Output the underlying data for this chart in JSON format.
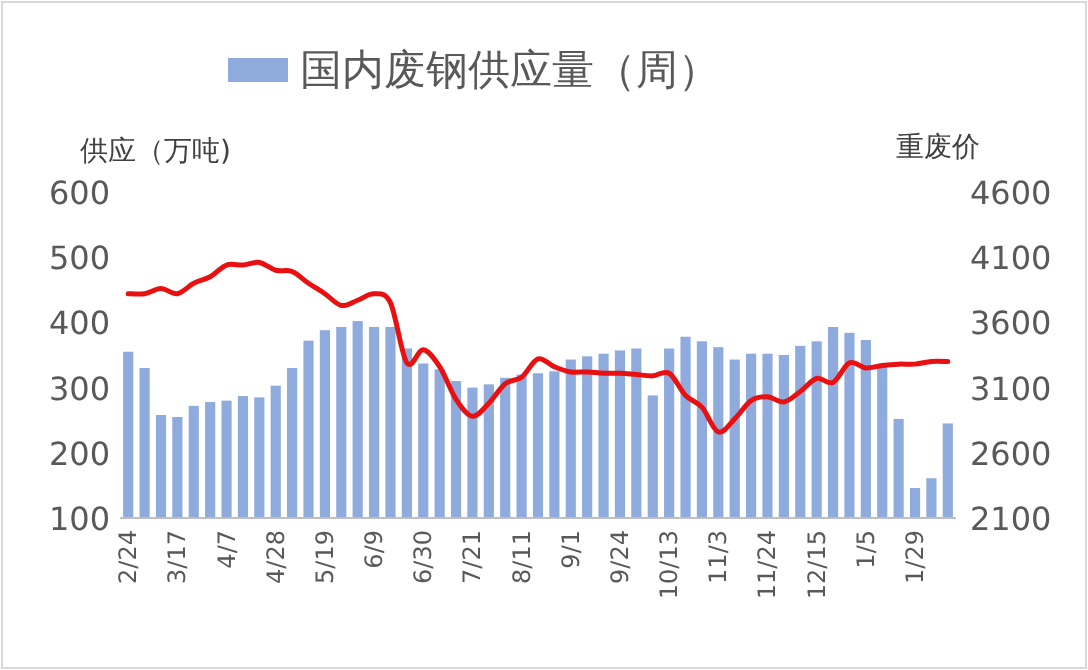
{
  "chart_data": {
    "type": "bar",
    "ylabel": "供应（万吨)",
    "y2label": "重废价",
    "categories": [
      "2/24",
      null,
      null,
      "3/17",
      null,
      null,
      "4/7",
      null,
      null,
      "4/28",
      null,
      null,
      "5/19",
      null,
      null,
      "6/9",
      null,
      null,
      "6/30",
      null,
      null,
      "7/21",
      null,
      null,
      "8/11",
      null,
      null,
      "9/1",
      null,
      null,
      "9/24",
      null,
      null,
      "10/13",
      null,
      null,
      "11/3",
      null,
      null,
      "11/24",
      null,
      null,
      "12/15",
      null,
      null,
      "1/5",
      null,
      null,
      "1/29",
      null,
      null
    ],
    "series": [
      {
        "name": "国内废钢供应量（周）",
        "color": "#8faadc",
        "values": [
          355,
          330,
          258,
          255,
          272,
          278,
          280,
          287,
          285,
          303,
          330,
          372,
          388,
          393,
          402,
          393,
          393,
          360,
          337,
          328,
          310,
          300,
          305,
          315,
          320,
          322,
          325,
          343,
          348,
          352,
          357,
          360,
          288,
          360,
          378,
          371,
          362,
          343,
          352,
          352,
          350,
          364,
          371,
          393,
          384,
          373,
          335,
          252,
          146,
          161,
          245
        ]
      },
      {
        "type": "line",
        "axis": "y2",
        "color": "#e81010",
        "values": [
          3820,
          3820,
          3860,
          3820,
          3900,
          3950,
          4040,
          4040,
          4060,
          4000,
          3990,
          3900,
          3820,
          3730,
          3770,
          3820,
          3750,
          3290,
          3390,
          3260,
          3010,
          2880,
          2980,
          3130,
          3180,
          3320,
          3260,
          3220,
          3220,
          3210,
          3210,
          3200,
          3190,
          3210,
          3040,
          2950,
          2760,
          2860,
          3000,
          3030,
          2990,
          3070,
          3170,
          3140,
          3290,
          3250,
          3270,
          3280,
          3280,
          3300,
          3300
        ]
      }
    ],
    "ylim": [
      100,
      600
    ],
    "yticks": [
      100,
      200,
      300,
      400,
      500,
      600
    ],
    "y2lim": [
      2100,
      4600
    ],
    "y2ticks": [
      2100,
      2600,
      3100,
      3600,
      4100,
      4600
    ],
    "legend": "top",
    "grid": false
  }
}
